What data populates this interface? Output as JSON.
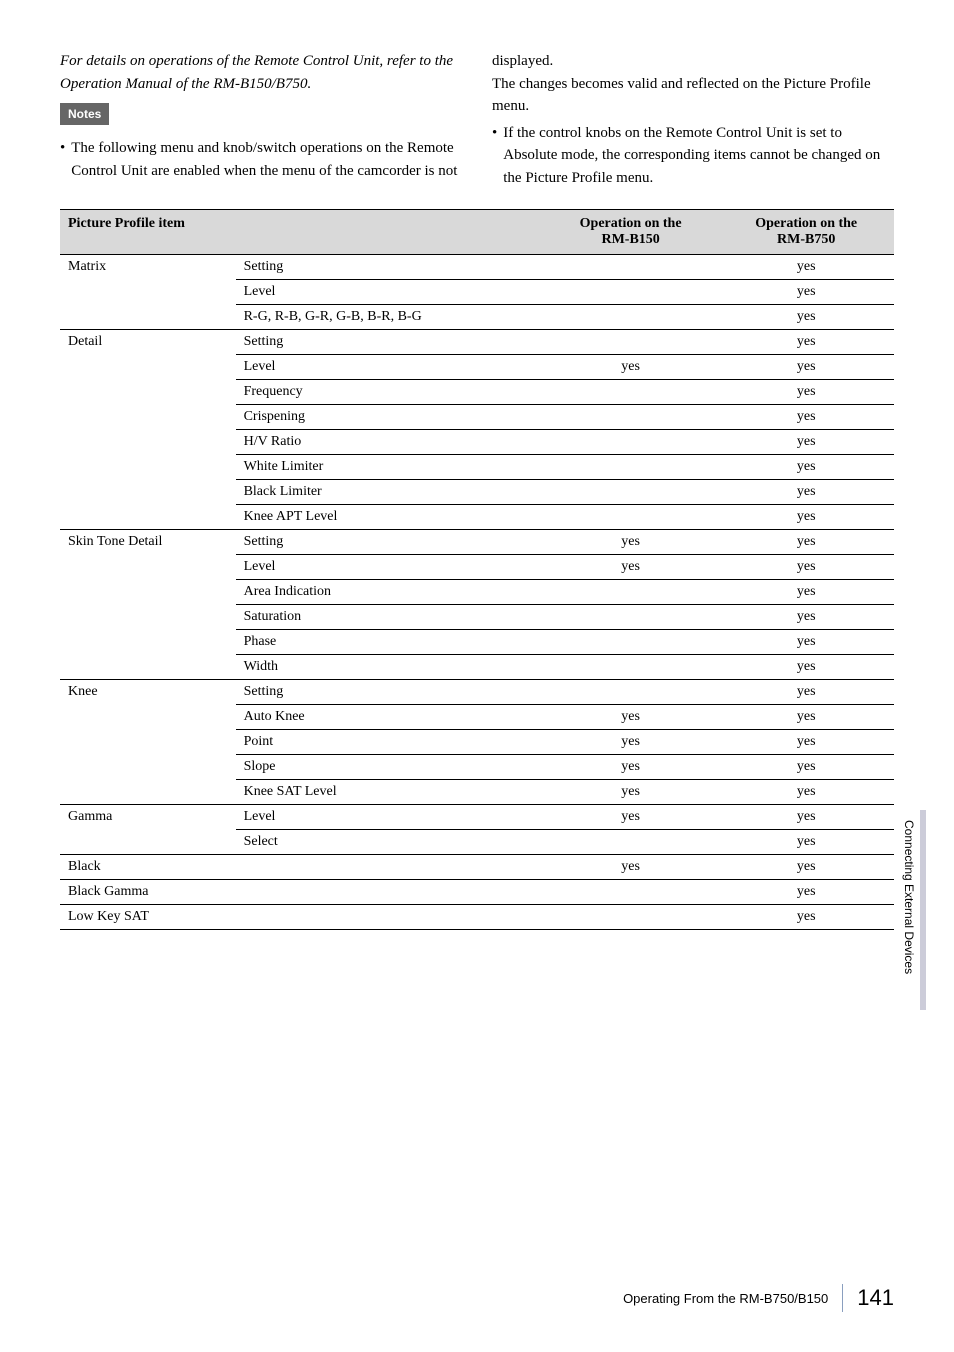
{
  "intro": {
    "left_italic": "For details on operations of the Remote Control Unit, refer to the Operation Manual of the RM-B150/B750.",
    "notes_label": "Notes",
    "left_bullet": "The following menu and knob/switch operations on the Remote Control Unit are enabled when the menu of the camcorder is not",
    "right_cont": "displayed.",
    "right_p1": "The changes becomes valid and reflected on the Picture Profile menu.",
    "right_bullet": "If the control knobs on the Remote Control Unit is set to Absolute mode, the corresponding items cannot be changed on the Picture Profile menu."
  },
  "table": {
    "headers": {
      "item": "Picture Profile item",
      "op150": "Operation on the",
      "op150_sub": "RM-B150",
      "op750": "Operation on the",
      "op750_sub": "RM-B750"
    },
    "groups": [
      {
        "name": "Matrix",
        "rows": [
          {
            "sub": "Setting",
            "b150": "",
            "b750": "yes"
          },
          {
            "sub": "Level",
            "b150": "",
            "b750": "yes"
          },
          {
            "sub": "R-G, R-B, G-R, G-B, B-R, B-G",
            "b150": "",
            "b750": "yes"
          }
        ]
      },
      {
        "name": "Detail",
        "rows": [
          {
            "sub": "Setting",
            "b150": "",
            "b750": "yes"
          },
          {
            "sub": "Level",
            "b150": "yes",
            "b750": "yes"
          },
          {
            "sub": "Frequency",
            "b150": "",
            "b750": "yes"
          },
          {
            "sub": "Crispening",
            "b150": "",
            "b750": "yes"
          },
          {
            "sub": "H/V Ratio",
            "b150": "",
            "b750": "yes"
          },
          {
            "sub": "White Limiter",
            "b150": "",
            "b750": "yes"
          },
          {
            "sub": "Black Limiter",
            "b150": "",
            "b750": "yes"
          },
          {
            "sub": "Knee APT Level",
            "b150": "",
            "b750": "yes"
          }
        ]
      },
      {
        "name": "Skin Tone Detail",
        "rows": [
          {
            "sub": "Setting",
            "b150": "yes",
            "b750": "yes"
          },
          {
            "sub": "Level",
            "b150": "yes",
            "b750": "yes"
          },
          {
            "sub": "Area Indication",
            "b150": "",
            "b750": "yes"
          },
          {
            "sub": "Saturation",
            "b150": "",
            "b750": "yes"
          },
          {
            "sub": "Phase",
            "b150": "",
            "b750": "yes"
          },
          {
            "sub": "Width",
            "b150": "",
            "b750": "yes"
          }
        ]
      },
      {
        "name": "Knee",
        "rows": [
          {
            "sub": "Setting",
            "b150": "",
            "b750": "yes"
          },
          {
            "sub": "Auto Knee",
            "b150": "yes",
            "b750": "yes"
          },
          {
            "sub": "Point",
            "b150": "yes",
            "b750": "yes"
          },
          {
            "sub": "Slope",
            "b150": "yes",
            "b750": "yes"
          },
          {
            "sub": "Knee SAT Level",
            "b150": "yes",
            "b750": "yes"
          }
        ]
      },
      {
        "name": "Gamma",
        "rows": [
          {
            "sub": "Level",
            "b150": "yes",
            "b750": "yes"
          },
          {
            "sub": "Select",
            "b150": "",
            "b750": "yes"
          }
        ]
      },
      {
        "name": "Black",
        "rows": [
          {
            "sub": "",
            "b150": "yes",
            "b750": "yes"
          }
        ]
      },
      {
        "name": "Black Gamma",
        "rows": [
          {
            "sub": "",
            "b150": "",
            "b750": "yes"
          }
        ]
      },
      {
        "name": "Low Key SAT",
        "rows": [
          {
            "sub": "",
            "b150": "",
            "b750": "yes"
          }
        ]
      }
    ]
  },
  "side_label": "Connecting External Devices",
  "footer": {
    "title": "Operating From the RM-B750/B150",
    "page": "141"
  }
}
